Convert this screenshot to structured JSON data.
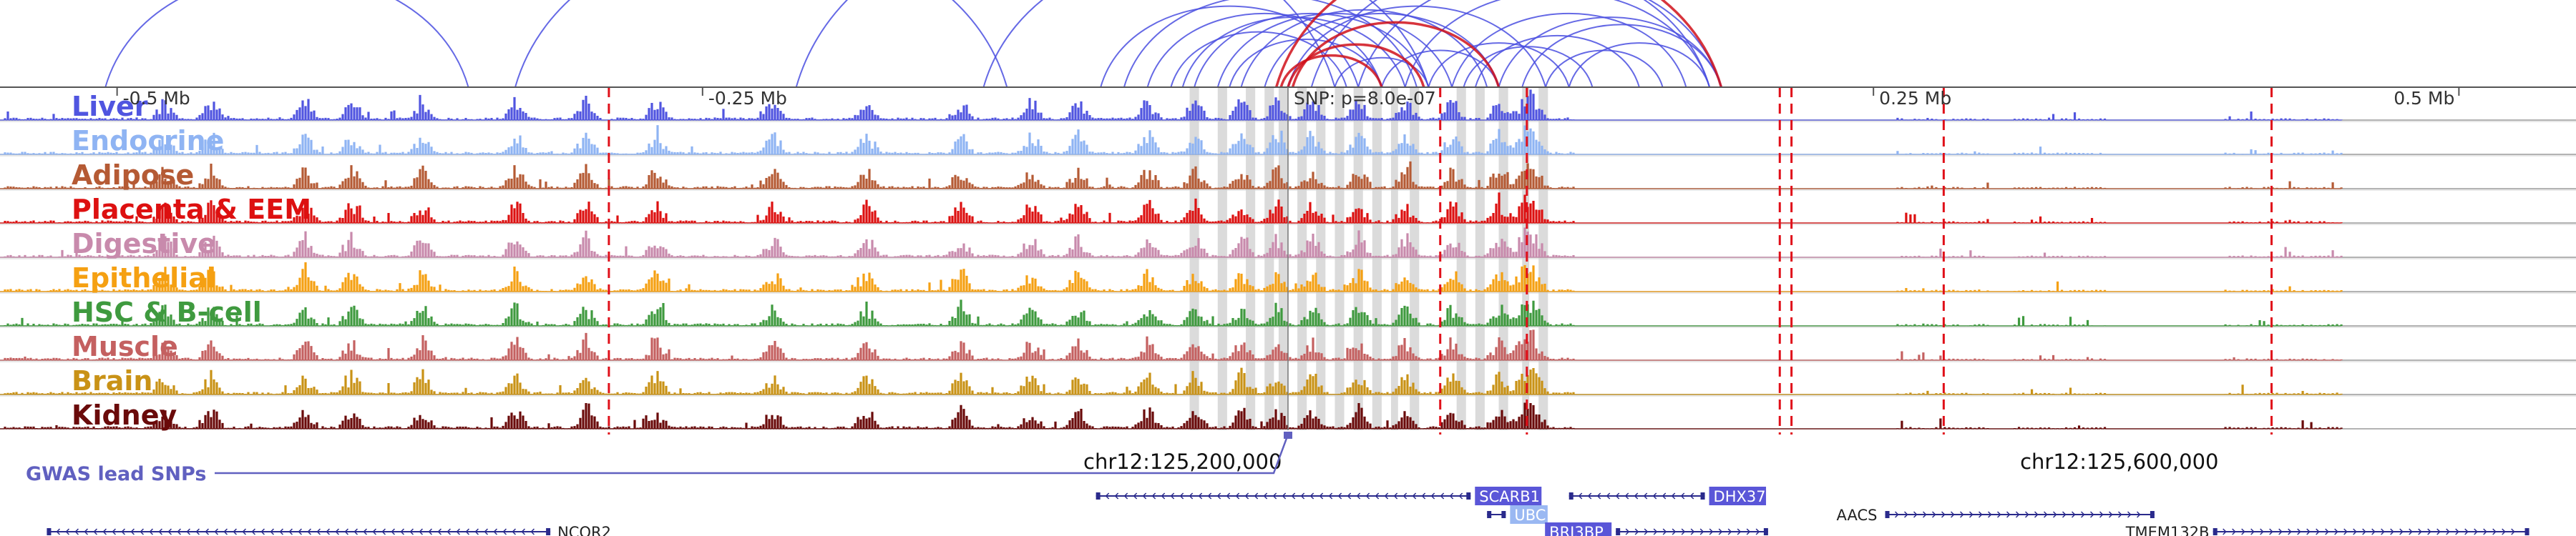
{
  "colors": {
    "loop_blue": "#4a4fe0",
    "loop_red": "#d0101a",
    "highlight": "#cfcfcf",
    "dashed": "#e0101a",
    "gene": "#2a2a8c",
    "gene_box": "#5a56d8",
    "gene_box_light": "#9ab8f2",
    "gwas": "#6060c0"
  },
  "axis": {
    "ticks": [
      {
        "pos": -0.5,
        "label": "-0.5 Mb"
      },
      {
        "pos": -0.25,
        "label": "-0.25 Mb"
      },
      {
        "pos": 0.25,
        "label": "0.25 Mb"
      },
      {
        "pos": 0.5,
        "label": "0.5 Mb"
      }
    ]
  },
  "snp": {
    "pos": 0.0,
    "label": "SNP: p=8.0e-07"
  },
  "tracks": [
    {
      "name": "Liver",
      "color": "#5055e0"
    },
    {
      "name": "Endocrine",
      "color": "#8fb4f3"
    },
    {
      "name": "Adipose",
      "color": "#b55a34"
    },
    {
      "name": "Placenta & EEM",
      "color": "#dd1010"
    },
    {
      "name": "Digestive",
      "color": "#c88aac"
    },
    {
      "name": "Epithelial",
      "color": "#f5a012"
    },
    {
      "name": "HSC & B-cell",
      "color": "#3f9a3f"
    },
    {
      "name": "Muscle",
      "color": "#c46060"
    },
    {
      "name": "Brain",
      "color": "#c99216"
    },
    {
      "name": "Kidney",
      "color": "#6a0a0a"
    }
  ],
  "gwas": {
    "label": "GWAS lead SNPs"
  },
  "coords": [
    {
      "label": "chr12:125,200,000",
      "pos": -0.045
    },
    {
      "label": "chr12:125,600,000",
      "pos": 0.355
    }
  ],
  "genes": [
    {
      "name": "NCOR2",
      "start": -0.53,
      "end": -0.315,
      "row": 2,
      "strand": "-",
      "label_side": "end",
      "style": "plain"
    },
    {
      "name": "SCARB1",
      "start": -0.082,
      "end": 0.078,
      "row": 0,
      "strand": "-",
      "label_side": "end",
      "style": "box"
    },
    {
      "name": "UBC",
      "start": 0.085,
      "end": 0.093,
      "row": 1,
      "strand": "-",
      "label_side": "end",
      "style": "boxlight"
    },
    {
      "name": "DHX37",
      "start": 0.12,
      "end": 0.178,
      "row": 0,
      "strand": "-",
      "label_side": "end",
      "style": "box"
    },
    {
      "name": "BRI3BP",
      "start": 0.14,
      "end": 0.205,
      "row": 2,
      "strand": "+",
      "label_side": "start",
      "style": "box"
    },
    {
      "name": "AACS",
      "start": 0.255,
      "end": 0.37,
      "row": 1,
      "strand": "+",
      "label_side": "start",
      "style": "plain"
    },
    {
      "name": "TMEM132B",
      "start": 0.395,
      "end": 0.53,
      "row": 2,
      "strand": "+",
      "label_side": "start",
      "style": "plain"
    }
  ]
}
